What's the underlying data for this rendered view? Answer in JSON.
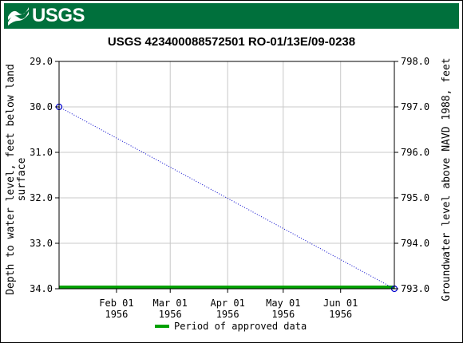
{
  "header": {
    "logo_text": "USGS",
    "logo_icon": "usgs-wave-icon",
    "banner_color": "#00703c"
  },
  "chart_data": {
    "type": "line",
    "title": "USGS 423400088572501 RO-01/13E/09-0238",
    "ylabel": "Depth to water level, feet below land surface",
    "ylabel_lines": [
      "Depth to water level, feet below land",
      "surface"
    ],
    "y2label": "Groundwater level above NAVD 1988, feet",
    "y_inverted": true,
    "ylim": [
      29.0,
      34.0
    ],
    "y_ticks": [
      "29.0",
      "30.0",
      "31.0",
      "32.0",
      "33.0",
      "34.0"
    ],
    "y2lim": [
      798.0,
      793.0
    ],
    "y2_ticks": [
      "798.0",
      "797.0",
      "796.0",
      "795.0",
      "794.0",
      "793.0"
    ],
    "xlim": [
      "1956-01-01",
      "1956-06-30"
    ],
    "x_ticks": [
      {
        "date": "1956-02-01",
        "line1": "Feb 01",
        "line2": "1956"
      },
      {
        "date": "1956-03-01",
        "line1": "Mar 01",
        "line2": "1956"
      },
      {
        "date": "1956-04-01",
        "line1": "Apr 01",
        "line2": "1956"
      },
      {
        "date": "1956-05-01",
        "line1": "May 01",
        "line2": "1956"
      },
      {
        "date": "1956-06-01",
        "line1": "Jun 01",
        "line2": "1956"
      }
    ],
    "grid": true,
    "series": [
      {
        "points": [
          {
            "x": "1956-01-01",
            "y": 30.0
          },
          {
            "x": "1956-06-30",
            "y": 34.0
          }
        ],
        "color": "#0000cc",
        "style": "dotted",
        "marker": "open-circle"
      }
    ],
    "approved_period": {
      "start": "1956-01-01",
      "end": "1956-06-30",
      "color": "#00a000"
    },
    "legend": {
      "label": "Period of approved data",
      "placement": "bottom-center"
    }
  }
}
